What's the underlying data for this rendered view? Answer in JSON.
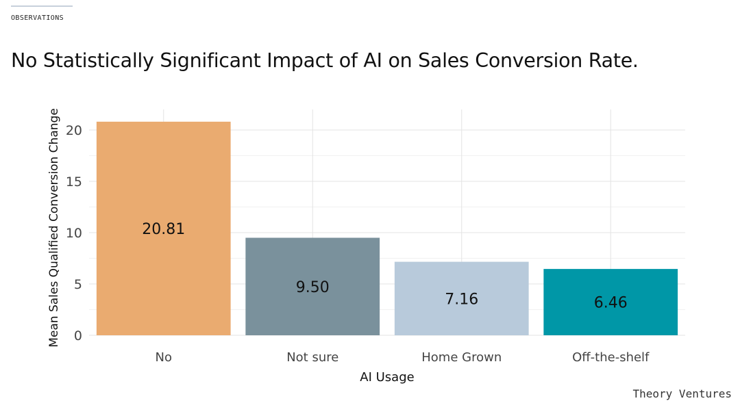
{
  "header": {
    "section_label": "OBSERVATIONS",
    "title": "No Statistically Significant Impact of AI on Sales Conversion Rate."
  },
  "footer": {
    "brand": "Theory Ventures"
  },
  "colors": {
    "bar_no": "#eaab70",
    "bar_not_sure": "#7a919c",
    "bar_home_grown": "#b8cadb",
    "bar_off_the_shelf": "#0097a7",
    "grid": "#e3e3e3",
    "accent_rule": "#c7d0db"
  },
  "chart_data": {
    "type": "bar",
    "categories": [
      "No",
      "Not sure",
      "Home Grown",
      "Off-the-shelf"
    ],
    "values": [
      20.81,
      9.5,
      7.16,
      6.46
    ],
    "value_labels": [
      "20.81",
      "9.50",
      "7.16",
      "6.46"
    ],
    "bar_colors": [
      "#eaab70",
      "#7a919c",
      "#b8cadb",
      "#0097a7"
    ],
    "title": "",
    "xlabel": "AI Usage",
    "ylabel": "Mean Sales Qualified Conversion Change",
    "ylim": [
      0,
      22
    ],
    "yticks": [
      0,
      5,
      10,
      15,
      20
    ],
    "grid": true,
    "legend": "none"
  }
}
